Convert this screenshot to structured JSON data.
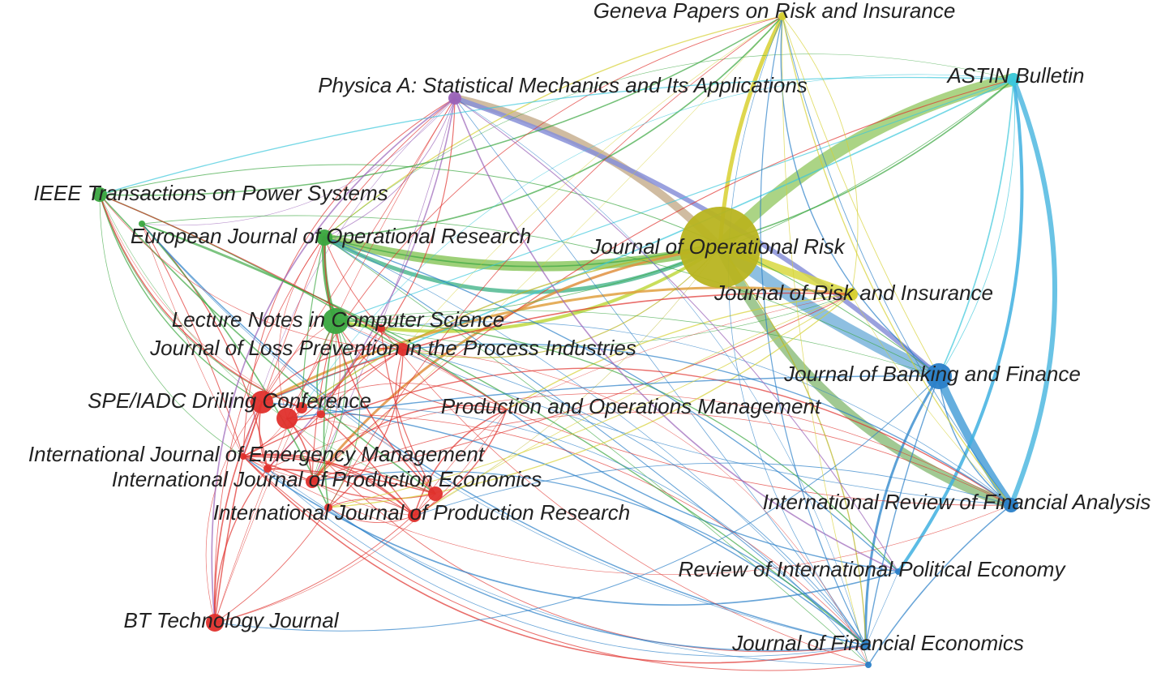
{
  "nodes": [
    {
      "label": "Geneva Papers on Risk and Insurance"
    },
    {
      "label": "ASTIN Bulletin"
    },
    {
      "label": "Physica A: Statistical Mechanics and Its Applications"
    },
    {
      "label": "IEEE Transactions on Power Systems"
    },
    {
      "label": "European Journal of Operational Research"
    },
    {
      "label": "Journal of Operational Risk"
    },
    {
      "label": "Journal of Risk and Insurance"
    },
    {
      "label": "Lecture Notes in Computer Science"
    },
    {
      "label": "Journal of Loss Prevention in the Process Industries"
    },
    {
      "label": "Journal of Banking and Finance"
    },
    {
      "label": "SPE/IADC Drilling Conference"
    },
    {
      "label": "Production and Operations Management"
    },
    {
      "label": "International Journal of Emergency Management"
    },
    {
      "label": "International Journal of Production Economics"
    },
    {
      "label": "International Journal of Production Research"
    },
    {
      "label": "International Review of Financial Analysis"
    },
    {
      "label": "Review of International Political Economy"
    },
    {
      "label": "BT Technology Journal"
    },
    {
      "label": "Journal of Financial Economics"
    }
  ]
}
